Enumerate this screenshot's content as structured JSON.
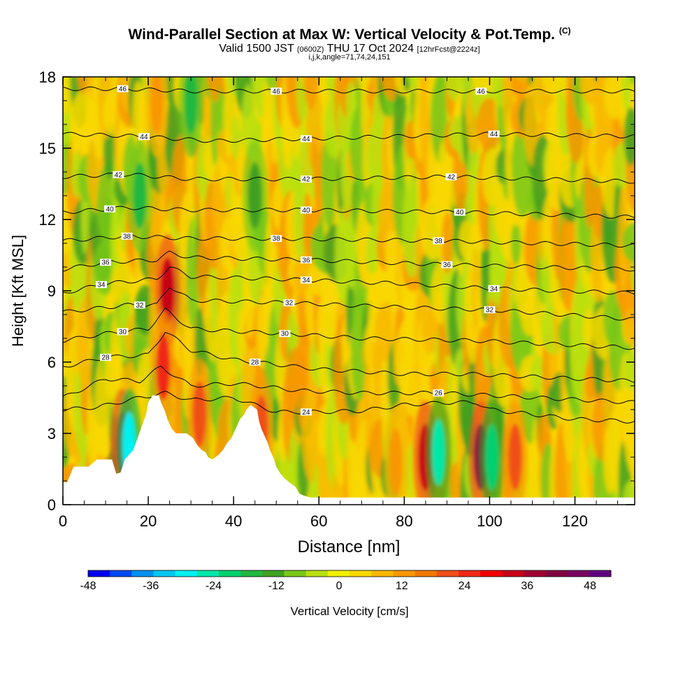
{
  "header": {
    "title_main": "Wind-Parallel Section at Max W: Vertical Velocity & Pot.Temp.",
    "title_mark": "(C)",
    "subtitle_a": "Valid 1500 JST",
    "subtitle_b": "(0600Z)",
    "subtitle_c": "THU 17 Oct 2024",
    "subtitle_d": "[12hrFcst@2224z]",
    "subtitle_line2": "i,j,k,angle=71,74,24,151"
  },
  "chart_data": {
    "type": "heatmap",
    "xlabel": "Distance [nm]",
    "ylabel": "Height [Kft MSL]",
    "xlim": [
      0,
      134
    ],
    "ylim": [
      0,
      18
    ],
    "xticks": [
      0,
      20,
      40,
      60,
      80,
      100,
      120
    ],
    "yticks": [
      0,
      3,
      6,
      9,
      12,
      15,
      18
    ],
    "grid": false,
    "colorbar": {
      "label": "Vertical Velocity [cm/s]",
      "range": [
        -48,
        52
      ],
      "ticks": [
        -48,
        -36,
        -24,
        -12,
        0,
        12,
        24,
        36,
        48
      ],
      "colors": [
        "#0000f0",
        "#0048f0",
        "#0090f0",
        "#00c8f0",
        "#00f0f0",
        "#00e8a8",
        "#00d070",
        "#20b840",
        "#40a020",
        "#78c818",
        "#b8e010",
        "#f0f000",
        "#f8d800",
        "#f8b800",
        "#f89800",
        "#f07800",
        "#f05018",
        "#f02818",
        "#f00000",
        "#c80018",
        "#a00030",
        "#800040",
        "#780060",
        "#600080"
      ]
    },
    "potential_temperature_contours": {
      "labels": [
        24,
        26,
        28,
        30,
        32,
        34,
        36,
        38,
        40,
        42,
        44,
        46
      ],
      "heights": [
        {
          "level": 24,
          "pts": [
            [
              0,
              4.0
            ],
            [
              8,
              4.1
            ],
            [
              18,
              4.5
            ],
            [
              24,
              4.7
            ],
            [
              30,
              4.4
            ],
            [
              40,
              4.5
            ],
            [
              50,
              3.9
            ],
            [
              60,
              3.9
            ],
            [
              70,
              3.95
            ],
            [
              80,
              4.2
            ],
            [
              90,
              4.3
            ],
            [
              97,
              4.3
            ],
            [
              100,
              4.0
            ],
            [
              110,
              3.8
            ],
            [
              120,
              3.6
            ],
            [
              134,
              3.5
            ]
          ]
        },
        {
          "level": 26,
          "pts": [
            [
              0,
              4.5
            ],
            [
              10,
              5.3
            ],
            [
              18,
              5.2
            ],
            [
              23,
              5.8
            ],
            [
              30,
              5.0
            ],
            [
              40,
              5.1
            ],
            [
              46,
              5.0
            ],
            [
              55,
              4.8
            ],
            [
              70,
              4.7
            ],
            [
              88,
              4.7
            ],
            [
              100,
              4.6
            ],
            [
              134,
              4.3
            ]
          ]
        },
        {
          "level": 28,
          "pts": [
            [
              0,
              5.8
            ],
            [
              10,
              6.2
            ],
            [
              20,
              6.3
            ],
            [
              24,
              7.3
            ],
            [
              30,
              6.5
            ],
            [
              40,
              6.1
            ],
            [
              45,
              6.0
            ],
            [
              60,
              5.7
            ],
            [
              80,
              5.5
            ],
            [
              95,
              5.5
            ],
            [
              134,
              5.2
            ]
          ]
        },
        {
          "level": 30,
          "pts": [
            [
              0,
              6.9
            ],
            [
              10,
              7.2
            ],
            [
              20,
              7.4
            ],
            [
              24,
              8.2
            ],
            [
              30,
              7.4
            ],
            [
              40,
              7.3
            ],
            [
              52,
              7.2
            ],
            [
              70,
              7.0
            ],
            [
              97,
              6.9
            ],
            [
              134,
              6.6
            ]
          ]
        },
        {
          "level": 32,
          "pts": [
            [
              0,
              8.1
            ],
            [
              15,
              8.4
            ],
            [
              22,
              8.4
            ],
            [
              25,
              9.2
            ],
            [
              30,
              8.6
            ],
            [
              52,
              8.5
            ],
            [
              80,
              8.3
            ],
            [
              100,
              8.2
            ],
            [
              134,
              7.8
            ]
          ]
        },
        {
          "level": 34,
          "pts": [
            [
              0,
              8.9
            ],
            [
              10,
              9.3
            ],
            [
              22,
              9.5
            ],
            [
              25,
              10.0
            ],
            [
              30,
              9.6
            ],
            [
              50,
              9.5
            ],
            [
              80,
              9.3
            ],
            [
              100,
              9.1
            ],
            [
              134,
              8.9
            ]
          ]
        },
        {
          "level": 36,
          "pts": [
            [
              0,
              9.9
            ],
            [
              10,
              10.2
            ],
            [
              22,
              10.3
            ],
            [
              25,
              10.6
            ],
            [
              30,
              10.4
            ],
            [
              57,
              10.3
            ],
            [
              90,
              10.1
            ],
            [
              134,
              9.9
            ]
          ]
        },
        {
          "level": 38,
          "pts": [
            [
              0,
              11.1
            ],
            [
              15,
              11.3
            ],
            [
              30,
              11.2
            ],
            [
              50,
              11.2
            ],
            [
              90,
              11.1
            ],
            [
              134,
              10.9
            ]
          ]
        },
        {
          "level": 40,
          "pts": [
            [
              0,
              12.3
            ],
            [
              15,
              12.5
            ],
            [
              30,
              12.4
            ],
            [
              57,
              12.4
            ],
            [
              95,
              12.3
            ],
            [
              134,
              12.1
            ]
          ]
        },
        {
          "level": 42,
          "pts": [
            [
              0,
              13.8
            ],
            [
              15,
              13.9
            ],
            [
              30,
              13.7
            ],
            [
              57,
              13.7
            ],
            [
              90,
              13.8
            ],
            [
              134,
              13.6
            ]
          ]
        },
        {
          "level": 44,
          "pts": [
            [
              0,
              15.6
            ],
            [
              18,
              15.5
            ],
            [
              35,
              15.3
            ],
            [
              57,
              15.4
            ],
            [
              100,
              15.6
            ],
            [
              134,
              15.5
            ]
          ]
        },
        {
          "level": 46,
          "pts": [
            [
              0,
              17.5
            ],
            [
              14,
              17.5
            ],
            [
              30,
              17.4
            ],
            [
              50,
              17.4
            ],
            [
              90,
              17.4
            ],
            [
              134,
              17.4
            ]
          ]
        }
      ]
    },
    "velocity_features": [
      {
        "x": 14,
        "y": 2.5,
        "value": 36
      },
      {
        "x": 15.5,
        "y": 2.5,
        "value": -30
      },
      {
        "x": 24.5,
        "y": 9.0,
        "value": 34
      },
      {
        "x": 23.5,
        "y": 5.8,
        "value": 24
      },
      {
        "x": 32,
        "y": 3.8,
        "value": 20
      },
      {
        "x": 46.5,
        "y": 3.2,
        "value": 22
      },
      {
        "x": 85,
        "y": 2.0,
        "value": 34
      },
      {
        "x": 88,
        "y": 2.2,
        "value": -26
      },
      {
        "x": 98,
        "y": 2.0,
        "value": 40
      },
      {
        "x": 100.5,
        "y": 2.0,
        "value": -20
      },
      {
        "x": 106,
        "y": 2.0,
        "value": 22
      },
      {
        "x": 78,
        "y": 1.8,
        "value": 14
      },
      {
        "x": 18,
        "y": 13.0,
        "value": -16
      },
      {
        "x": 45,
        "y": 13.0,
        "value": -14
      },
      {
        "x": 30,
        "y": 17.0,
        "value": -16
      },
      {
        "x": 22,
        "y": 17.0,
        "value": 14
      }
    ],
    "terrain": [
      [
        0,
        0.95
      ],
      [
        1,
        0.95
      ],
      [
        2.5,
        1.6
      ],
      [
        6,
        1.6
      ],
      [
        8,
        1.9
      ],
      [
        11.5,
        1.9
      ],
      [
        12.5,
        1.3
      ],
      [
        13.5,
        1.35
      ],
      [
        14.5,
        1.9
      ],
      [
        16.5,
        2.3
      ],
      [
        17.5,
        2.8
      ],
      [
        18.5,
        3.3
      ],
      [
        19.5,
        3.8
      ],
      [
        20,
        4.3
      ],
      [
        21,
        4.6
      ],
      [
        22.5,
        4.6
      ],
      [
        23,
        4.3
      ],
      [
        24,
        3.9
      ],
      [
        24.5,
        3.6
      ],
      [
        25.5,
        3.2
      ],
      [
        26.5,
        3.0
      ],
      [
        28,
        3.0
      ],
      [
        29,
        3.0
      ],
      [
        30.5,
        2.8
      ],
      [
        31.5,
        2.5
      ],
      [
        32.5,
        2.3
      ],
      [
        33.5,
        2.2
      ],
      [
        34,
        2.0
      ],
      [
        35,
        1.9
      ],
      [
        36.5,
        2.1
      ],
      [
        37.5,
        2.3
      ],
      [
        38.5,
        2.6
      ],
      [
        39.5,
        2.8
      ],
      [
        40.5,
        3.2
      ],
      [
        41.5,
        3.6
      ],
      [
        42.5,
        3.8
      ],
      [
        43,
        4.0
      ],
      [
        44,
        4.2
      ],
      [
        45.5,
        4.0
      ],
      [
        46,
        3.5
      ],
      [
        46.5,
        3.2
      ],
      [
        47,
        3.0
      ],
      [
        48,
        2.6
      ],
      [
        48.5,
        2.3
      ],
      [
        49.5,
        1.9
      ],
      [
        50,
        1.6
      ],
      [
        51,
        1.3
      ],
      [
        52,
        1.1
      ],
      [
        53,
        0.95
      ],
      [
        54.5,
        0.75
      ],
      [
        55.5,
        0.45
      ],
      [
        57,
        0.35
      ],
      [
        58,
        0.3
      ],
      [
        60,
        0.3
      ],
      [
        134,
        0.3
      ]
    ]
  }
}
